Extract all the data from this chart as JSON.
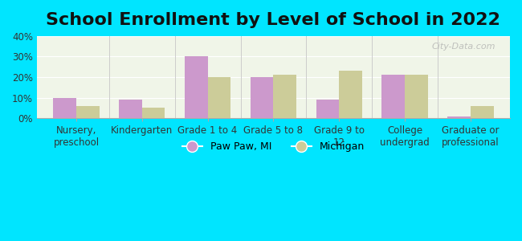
{
  "title": "School Enrollment by Level of School in 2022",
  "categories": [
    "Nursery,\npreschool",
    "Kindergarten",
    "Grade 1 to 4",
    "Grade 5 to 8",
    "Grade 9 to\n12",
    "College\nundergrad",
    "Graduate or\nprofessional"
  ],
  "paw_paw_values": [
    10,
    9,
    30,
    20,
    9,
    21,
    1
  ],
  "michigan_values": [
    6,
    5,
    20,
    21,
    23,
    21,
    6
  ],
  "paw_paw_color": "#cc99cc",
  "michigan_color": "#cccc99",
  "background_outer": "#00e5ff",
  "background_inner": "#f0f5e8",
  "ylim": [
    0,
    40
  ],
  "yticks": [
    0,
    10,
    20,
    30,
    40
  ],
  "ytick_labels": [
    "0%",
    "10%",
    "20%",
    "30%",
    "40%"
  ],
  "legend_labels": [
    "Paw Paw, MI",
    "Michigan"
  ],
  "watermark": "City-Data.com",
  "title_fontsize": 16,
  "tick_fontsize": 8.5,
  "legend_fontsize": 9,
  "bar_width": 0.35
}
